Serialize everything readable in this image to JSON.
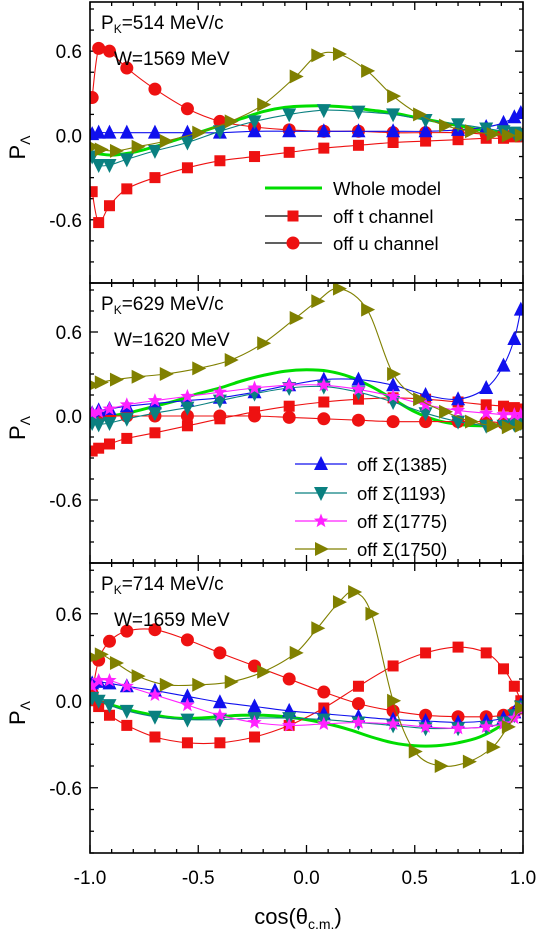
{
  "figure": {
    "xlabel": "cos(θ",
    "xlabel_sub": "c.m.",
    "xlabel_close": ")",
    "ylabel_main": "P",
    "ylabel_sub": "Λ"
  },
  "colors": {
    "whole": "#00dd00",
    "t": "#ee1111",
    "u": "#ee1111",
    "s1385": "#1010ee",
    "s1193": "#0a8080",
    "s1775": "#ff22ff",
    "s1750": "#808000"
  },
  "legend_top": [
    {
      "key": "whole",
      "label": "Whole model",
      "marker": "none"
    },
    {
      "key": "t",
      "label": "off t channel",
      "marker": "square"
    },
    {
      "key": "u",
      "label": "off u channel",
      "marker": "circle"
    }
  ],
  "legend_mid": [
    {
      "key": "s1385",
      "label": "off Σ(1385)",
      "marker": "triangle-up"
    },
    {
      "key": "s1193",
      "label": "off Σ(1193)",
      "marker": "triangle-down"
    },
    {
      "key": "s1775",
      "label": "off Σ(1775)",
      "marker": "star"
    },
    {
      "key": "s1750",
      "label": "off Σ(1750)",
      "marker": "triangle-right"
    }
  ],
  "chart_data": [
    {
      "type": "line",
      "panel": "top",
      "pk_main": "P",
      "pk_sub": "K",
      "pk_value": "=514 MeV/c",
      "w_label": "W=1569 MeV",
      "xlim": [
        -1.0,
        1.0
      ],
      "ylim": [
        -1.05,
        0.95
      ],
      "yticks": [
        0.6,
        0.0,
        -0.6
      ],
      "ytick_labels": [
        "0.6",
        "0.0",
        "-0.6"
      ],
      "xticks": [
        -1.0,
        -0.5,
        0.0,
        0.5,
        1.0
      ],
      "xtick_labels": [
        "-1.0",
        "-0.5",
        "0.0",
        "0.5",
        "1.0"
      ],
      "series": [
        {
          "key": "whole",
          "marker": "none",
          "x": [
            -1.0,
            -0.9,
            -0.8,
            -0.7,
            -0.6,
            -0.5,
            -0.4,
            -0.3,
            -0.2,
            -0.1,
            0.0,
            0.1,
            0.2,
            0.3,
            0.4,
            0.5,
            0.6,
            0.7,
            0.8,
            0.9,
            1.0
          ],
          "y": [
            -0.12,
            -0.14,
            -0.12,
            -0.08,
            -0.03,
            0.02,
            0.07,
            0.12,
            0.17,
            0.2,
            0.21,
            0.21,
            0.2,
            0.18,
            0.16,
            0.13,
            0.1,
            0.07,
            0.04,
            0.02,
            0.0
          ]
        },
        {
          "key": "t",
          "marker": "square",
          "x": [
            -0.99,
            -0.96,
            -0.91,
            -0.83,
            -0.7,
            -0.55,
            -0.4,
            -0.24,
            -0.08,
            0.08,
            0.24,
            0.4,
            0.55,
            0.7,
            0.83,
            0.91,
            0.96,
            0.99
          ],
          "y": [
            -0.4,
            -0.62,
            -0.5,
            -0.38,
            -0.3,
            -0.23,
            -0.18,
            -0.15,
            -0.12,
            -0.09,
            -0.07,
            -0.05,
            -0.04,
            -0.03,
            -0.02,
            -0.02,
            -0.01,
            -0.01
          ]
        },
        {
          "key": "u",
          "marker": "circle",
          "x": [
            -0.99,
            -0.96,
            -0.91,
            -0.83,
            -0.7,
            -0.55,
            -0.4,
            -0.24,
            -0.08,
            0.08,
            0.24,
            0.4,
            0.55,
            0.7,
            0.83,
            0.91,
            0.96,
            0.99
          ],
          "y": [
            0.27,
            0.62,
            0.6,
            0.48,
            0.33,
            0.19,
            0.1,
            0.06,
            0.04,
            0.03,
            0.03,
            0.02,
            0.02,
            0.02,
            0.01,
            0.01,
            0.01,
            0.01
          ]
        },
        {
          "key": "s1385",
          "marker": "triangle-up",
          "x": [
            -0.99,
            -0.96,
            -0.91,
            -0.83,
            -0.7,
            -0.55,
            -0.4,
            -0.24,
            -0.08,
            0.08,
            0.24,
            0.4,
            0.55,
            0.7,
            0.83,
            0.91,
            0.96,
            0.99
          ],
          "y": [
            0.01,
            0.02,
            0.02,
            0.02,
            0.02,
            0.02,
            0.02,
            0.03,
            0.03,
            0.03,
            0.03,
            0.03,
            0.03,
            0.04,
            0.06,
            0.09,
            0.13,
            0.16
          ]
        },
        {
          "key": "s1193",
          "marker": "triangle-down",
          "x": [
            -0.99,
            -0.96,
            -0.91,
            -0.83,
            -0.7,
            -0.55,
            -0.4,
            -0.24,
            -0.08,
            0.08,
            0.24,
            0.4,
            0.55,
            0.7,
            0.83,
            0.91,
            0.96,
            0.99
          ],
          "y": [
            -0.15,
            -0.21,
            -0.21,
            -0.17,
            -0.11,
            -0.05,
            0.03,
            0.1,
            0.15,
            0.18,
            0.17,
            0.15,
            0.11,
            0.08,
            0.05,
            0.03,
            0.02,
            0.01
          ]
        },
        {
          "key": "s1750",
          "marker": "triangle-right",
          "x": [
            -0.99,
            -0.95,
            -0.88,
            -0.78,
            -0.65,
            -0.5,
            -0.35,
            -0.2,
            -0.05,
            0.05,
            0.15,
            0.28,
            0.4,
            0.52,
            0.64,
            0.76,
            0.86,
            0.93,
            0.99
          ],
          "y": [
            -0.08,
            -0.1,
            -0.11,
            -0.08,
            -0.04,
            0.02,
            0.1,
            0.22,
            0.42,
            0.57,
            0.58,
            0.46,
            0.28,
            0.15,
            0.07,
            0.03,
            0.01,
            0.0,
            0.0
          ]
        }
      ]
    },
    {
      "type": "line",
      "panel": "middle",
      "pk_main": "P",
      "pk_sub": "K",
      "pk_value": "=629 MeV/c",
      "w_label": "W=1620 MeV",
      "xlim": [
        -1.0,
        1.0
      ],
      "ylim": [
        -1.05,
        0.95
      ],
      "yticks": [
        0.6,
        0.0,
        -0.6
      ],
      "ytick_labels": [
        "0.6",
        "0.0",
        "-0.6"
      ],
      "xticks": [
        -1.0,
        -0.5,
        0.0,
        0.5,
        1.0
      ],
      "xtick_labels": [
        "-1.0",
        "-0.5",
        "0.0",
        "0.5",
        "1.0"
      ],
      "series": [
        {
          "key": "whole",
          "marker": "none",
          "x": [
            -1.0,
            -0.9,
            -0.8,
            -0.7,
            -0.6,
            -0.5,
            -0.4,
            -0.3,
            -0.2,
            -0.1,
            0.0,
            0.1,
            0.2,
            0.3,
            0.4,
            0.5,
            0.6,
            0.7,
            0.8,
            0.9,
            1.0
          ],
          "y": [
            -0.02,
            0.0,
            0.03,
            0.07,
            0.11,
            0.16,
            0.2,
            0.25,
            0.29,
            0.32,
            0.33,
            0.32,
            0.28,
            0.21,
            0.12,
            0.03,
            -0.03,
            -0.06,
            -0.07,
            -0.06,
            -0.05
          ]
        },
        {
          "key": "t",
          "marker": "square",
          "x": [
            -0.99,
            -0.96,
            -0.91,
            -0.83,
            -0.7,
            -0.55,
            -0.4,
            -0.24,
            -0.08,
            0.08,
            0.24,
            0.4,
            0.55,
            0.7,
            0.83,
            0.91,
            0.96,
            0.99
          ],
          "y": [
            -0.25,
            -0.23,
            -0.2,
            -0.16,
            -0.12,
            -0.07,
            -0.02,
            0.03,
            0.07,
            0.1,
            0.12,
            0.13,
            0.12,
            0.1,
            0.08,
            0.07,
            0.06,
            0.05
          ]
        },
        {
          "key": "u",
          "marker": "circle",
          "x": [
            -0.99,
            -0.96,
            -0.91,
            -0.83,
            -0.7,
            -0.55,
            -0.4,
            -0.24,
            -0.08,
            0.08,
            0.24,
            0.4,
            0.55,
            0.7,
            0.83,
            0.91,
            0.96,
            0.99
          ],
          "y": [
            0.0,
            0.0,
            0.0,
            0.0,
            0.0,
            0.0,
            0.0,
            0.0,
            -0.01,
            -0.02,
            -0.03,
            -0.04,
            -0.04,
            -0.04,
            -0.04,
            -0.05,
            -0.05,
            -0.05
          ]
        },
        {
          "key": "s1385",
          "marker": "triangle-up",
          "x": [
            -0.99,
            -0.96,
            -0.91,
            -0.83,
            -0.7,
            -0.55,
            -0.4,
            -0.24,
            -0.08,
            0.08,
            0.24,
            0.4,
            0.55,
            0.7,
            0.83,
            0.91,
            0.96,
            0.99
          ],
          "y": [
            0.02,
            0.04,
            0.05,
            0.07,
            0.09,
            0.11,
            0.13,
            0.17,
            0.22,
            0.26,
            0.26,
            0.22,
            0.15,
            0.12,
            0.2,
            0.36,
            0.55,
            0.76
          ]
        },
        {
          "key": "s1193",
          "marker": "triangle-down",
          "x": [
            -0.99,
            -0.96,
            -0.91,
            -0.83,
            -0.7,
            -0.55,
            -0.4,
            -0.24,
            -0.08,
            0.08,
            0.24,
            0.4,
            0.55,
            0.7,
            0.83,
            0.91,
            0.96,
            0.99
          ],
          "y": [
            -0.05,
            -0.06,
            -0.05,
            -0.02,
            0.02,
            0.06,
            0.11,
            0.16,
            0.2,
            0.21,
            0.17,
            0.1,
            0.02,
            -0.04,
            -0.07,
            -0.07,
            -0.06,
            -0.05
          ]
        },
        {
          "key": "s1775",
          "marker": "star",
          "x": [
            -0.99,
            -0.96,
            -0.91,
            -0.83,
            -0.7,
            -0.55,
            -0.4,
            -0.24,
            -0.08,
            0.08,
            0.24,
            0.4,
            0.55,
            0.7,
            0.83,
            0.91,
            0.96,
            0.99
          ],
          "y": [
            0.02,
            0.03,
            0.05,
            0.08,
            0.11,
            0.14,
            0.17,
            0.2,
            0.22,
            0.22,
            0.19,
            0.14,
            0.08,
            0.04,
            0.02,
            0.01,
            0.01,
            0.01
          ]
        },
        {
          "key": "s1750",
          "marker": "triangle-right",
          "x": [
            -0.99,
            -0.95,
            -0.88,
            -0.78,
            -0.65,
            -0.5,
            -0.35,
            -0.2,
            -0.05,
            0.05,
            0.15,
            0.28,
            0.4,
            0.52,
            0.64,
            0.76,
            0.86,
            0.93,
            0.99
          ],
          "y": [
            0.22,
            0.24,
            0.26,
            0.28,
            0.3,
            0.34,
            0.4,
            0.52,
            0.7,
            0.82,
            0.91,
            0.76,
            0.3,
            0.12,
            0.03,
            -0.04,
            -0.07,
            -0.08,
            -0.07
          ]
        }
      ]
    },
    {
      "type": "line",
      "panel": "bottom",
      "pk_main": "P",
      "pk_sub": "K",
      "pk_value": "=714 MeV/c",
      "w_label": "W=1659 MeV",
      "xlim": [
        -1.0,
        1.0
      ],
      "ylim": [
        -1.05,
        0.95
      ],
      "yticks": [
        0.6,
        0.0,
        -0.6
      ],
      "ytick_labels": [
        "0.6",
        "0.0",
        "-0.6"
      ],
      "xticks": [
        -1.0,
        -0.5,
        0.0,
        0.5,
        1.0
      ],
      "xtick_labels": [
        "-1.0",
        "-0.5",
        "0.0",
        "0.5",
        "1.0"
      ],
      "series": [
        {
          "key": "whole",
          "marker": "none",
          "x": [
            -1.0,
            -0.9,
            -0.8,
            -0.7,
            -0.6,
            -0.5,
            -0.4,
            -0.3,
            -0.2,
            -0.1,
            0.0,
            0.1,
            0.2,
            0.3,
            0.4,
            0.5,
            0.6,
            0.7,
            0.8,
            0.9,
            1.0
          ],
          "y": [
            0.02,
            -0.03,
            -0.07,
            -0.1,
            -0.12,
            -0.12,
            -0.11,
            -0.1,
            -0.1,
            -0.11,
            -0.13,
            -0.16,
            -0.2,
            -0.25,
            -0.29,
            -0.31,
            -0.31,
            -0.29,
            -0.25,
            -0.17,
            -0.05
          ]
        },
        {
          "key": "t",
          "marker": "square",
          "x": [
            -0.99,
            -0.96,
            -0.91,
            -0.83,
            -0.7,
            -0.55,
            -0.4,
            -0.24,
            -0.08,
            0.08,
            0.24,
            0.4,
            0.55,
            0.7,
            0.83,
            0.91,
            0.96,
            0.99
          ],
          "y": [
            0.0,
            -0.04,
            -0.1,
            -0.17,
            -0.25,
            -0.29,
            -0.29,
            -0.25,
            -0.17,
            -0.05,
            0.1,
            0.24,
            0.33,
            0.37,
            0.33,
            0.22,
            0.1,
            0.0
          ]
        },
        {
          "key": "u",
          "marker": "circle",
          "x": [
            -0.99,
            -0.96,
            -0.91,
            -0.83,
            -0.7,
            -0.55,
            -0.4,
            -0.24,
            -0.08,
            0.08,
            0.24,
            0.4,
            0.55,
            0.7,
            0.83,
            0.91,
            0.96,
            0.99
          ],
          "y": [
            0.05,
            0.28,
            0.41,
            0.48,
            0.49,
            0.42,
            0.33,
            0.24,
            0.15,
            0.06,
            -0.02,
            -0.07,
            -0.1,
            -0.11,
            -0.11,
            -0.1,
            -0.08,
            -0.05
          ]
        },
        {
          "key": "s1385",
          "marker": "triangle-up",
          "x": [
            -0.99,
            -0.96,
            -0.91,
            -0.83,
            -0.7,
            -0.55,
            -0.4,
            -0.24,
            -0.08,
            0.08,
            0.24,
            0.4,
            0.55,
            0.7,
            0.83,
            0.91,
            0.96,
            0.99
          ],
          "y": [
            0.12,
            0.13,
            0.12,
            0.1,
            0.07,
            0.03,
            -0.01,
            -0.04,
            -0.07,
            -0.09,
            -0.11,
            -0.13,
            -0.14,
            -0.15,
            -0.14,
            -0.12,
            -0.08,
            -0.03
          ]
        },
        {
          "key": "s1193",
          "marker": "triangle-down",
          "x": [
            -0.99,
            -0.96,
            -0.91,
            -0.83,
            -0.7,
            -0.55,
            -0.4,
            -0.24,
            -0.08,
            0.08,
            0.24,
            0.4,
            0.55,
            0.7,
            0.83,
            0.91,
            0.96,
            0.99
          ],
          "y": [
            0.02,
            0.0,
            -0.03,
            -0.07,
            -0.11,
            -0.13,
            -0.13,
            -0.12,
            -0.12,
            -0.13,
            -0.15,
            -0.17,
            -0.19,
            -0.19,
            -0.18,
            -0.15,
            -0.1,
            -0.04
          ]
        },
        {
          "key": "s1775",
          "marker": "star",
          "x": [
            -0.99,
            -0.96,
            -0.91,
            -0.83,
            -0.7,
            -0.55,
            -0.4,
            -0.24,
            -0.08,
            0.08,
            0.24,
            0.4,
            0.55,
            0.7,
            0.83,
            0.91,
            0.96,
            0.99
          ],
          "y": [
            0.1,
            0.14,
            0.14,
            0.1,
            0.04,
            -0.03,
            -0.1,
            -0.15,
            -0.17,
            -0.16,
            -0.15,
            -0.16,
            -0.18,
            -0.19,
            -0.18,
            -0.16,
            -0.12,
            -0.06
          ]
        },
        {
          "key": "s1750",
          "marker": "triangle-right",
          "x": [
            -0.99,
            -0.95,
            -0.88,
            -0.78,
            -0.65,
            -0.5,
            -0.35,
            -0.2,
            -0.05,
            0.05,
            0.15,
            0.22,
            0.3,
            0.4,
            0.5,
            0.62,
            0.75,
            0.86,
            0.93,
            0.99
          ],
          "y": [
            0.3,
            0.32,
            0.26,
            0.17,
            0.11,
            0.11,
            0.13,
            0.2,
            0.33,
            0.5,
            0.68,
            0.75,
            0.6,
            0.0,
            -0.35,
            -0.45,
            -0.42,
            -0.32,
            -0.18,
            -0.05
          ]
        }
      ]
    }
  ]
}
